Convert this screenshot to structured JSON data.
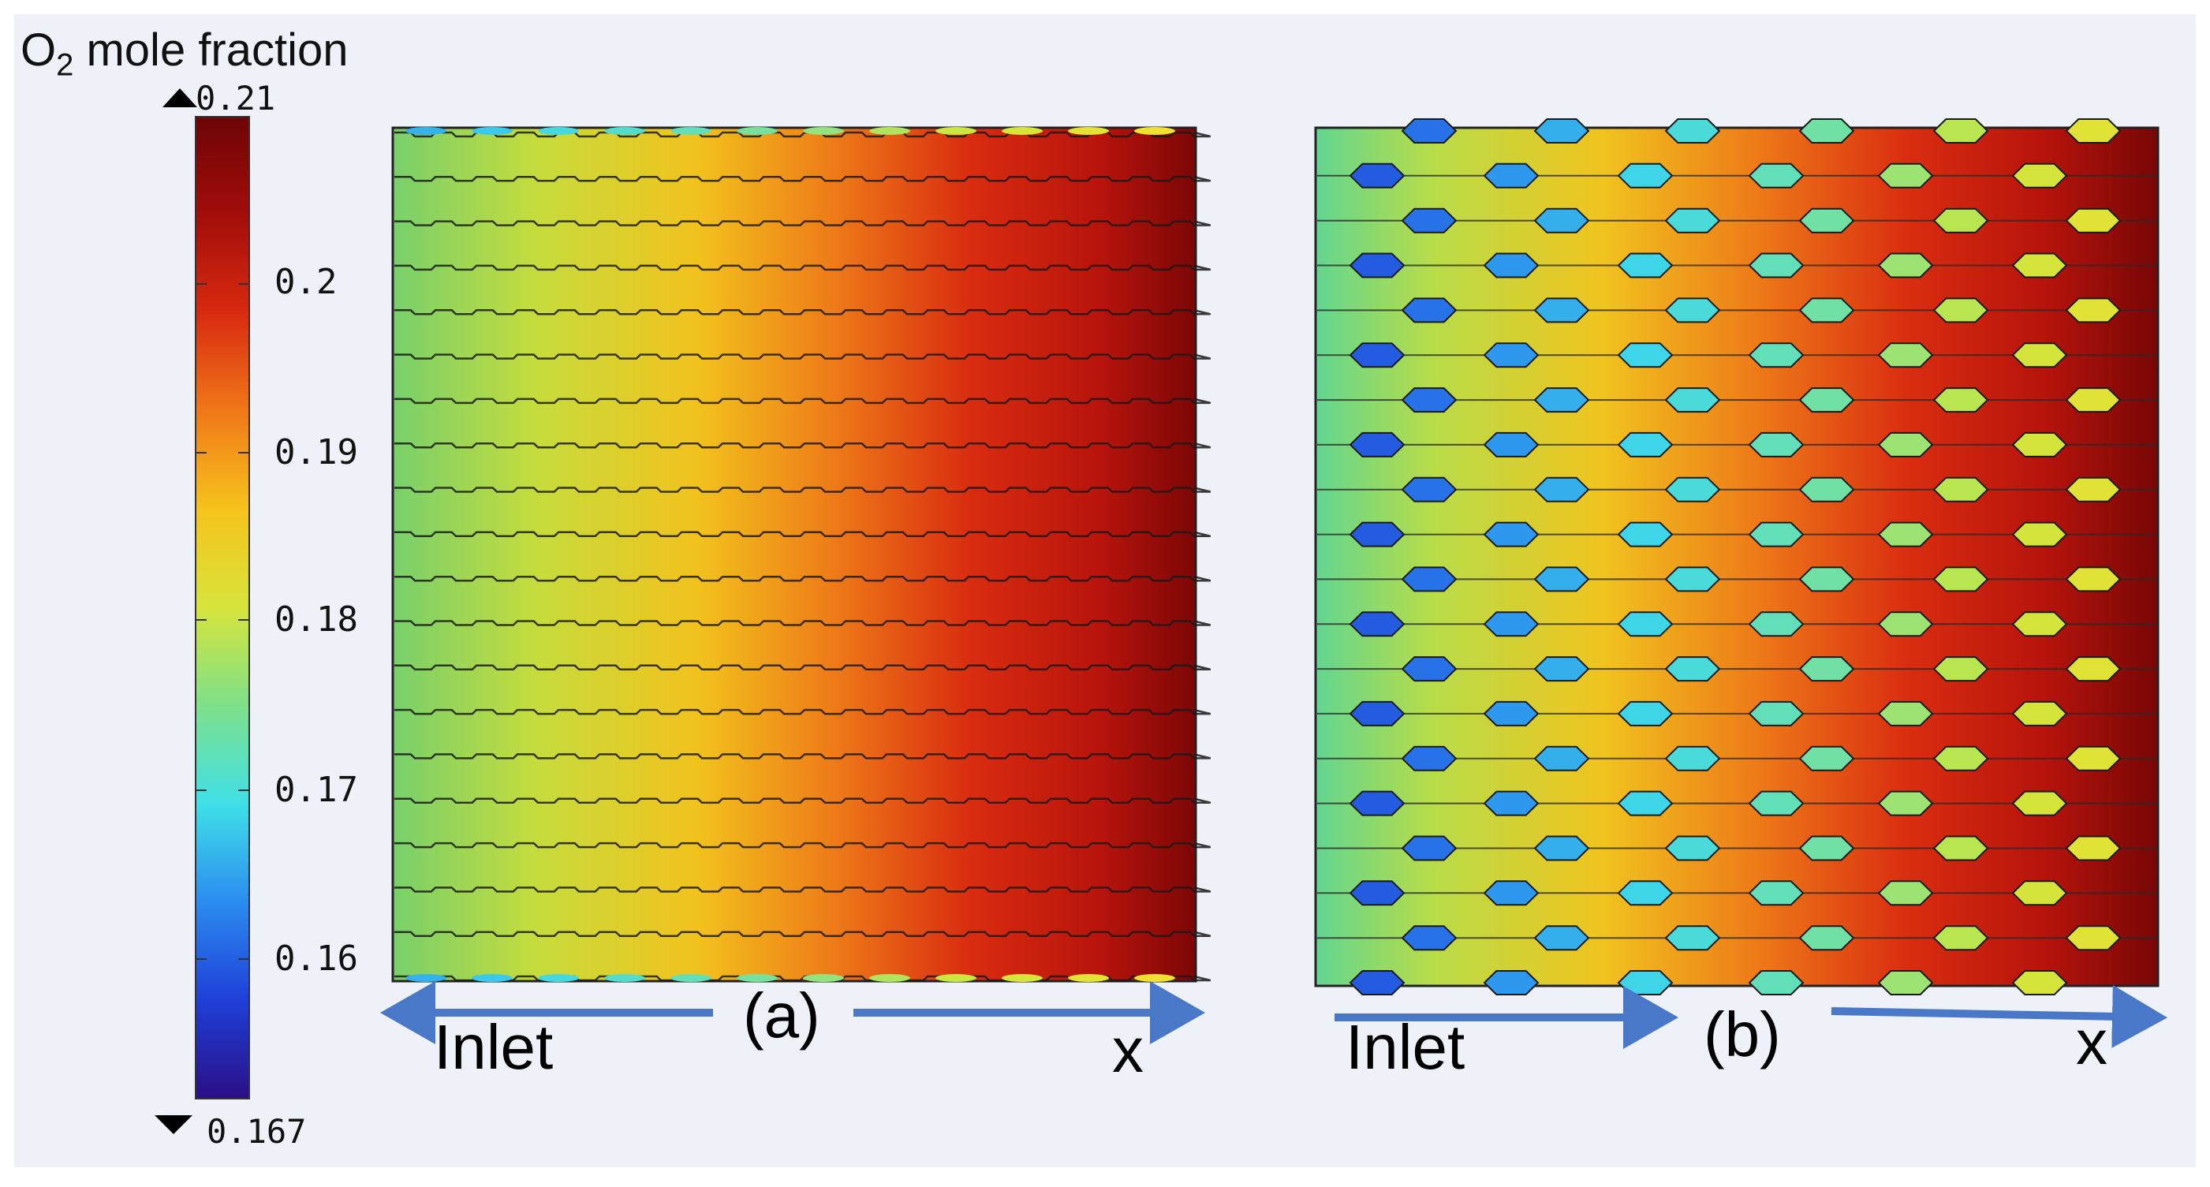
{
  "legend": {
    "title_main": "O",
    "title_sub": "2",
    "title_rest": " mole fraction",
    "max_label": "0.21",
    "min_label": "0.167",
    "ticks": [
      "0.2",
      "0.19",
      "0.18",
      "0.17",
      "0.16"
    ],
    "colormap": [
      "#2a0f86",
      "#1f3fd8",
      "#2b8cf0",
      "#3fe0e8",
      "#7ee08a",
      "#d6e43a",
      "#f6c31c",
      "#f07818",
      "#d92a10",
      "#a30d0a",
      "#6e0406"
    ]
  },
  "panels": {
    "a": {
      "caption": "(a)",
      "inlet_label": "Inlet",
      "axis_label": "x"
    },
    "b": {
      "caption": "(b)",
      "inlet_label": "Inlet",
      "axis_label": "x"
    }
  },
  "colors": {
    "arrow": "#4a78c8",
    "inlet_low": "#7ed06a",
    "outlet_high": "#8e0a0a"
  }
}
